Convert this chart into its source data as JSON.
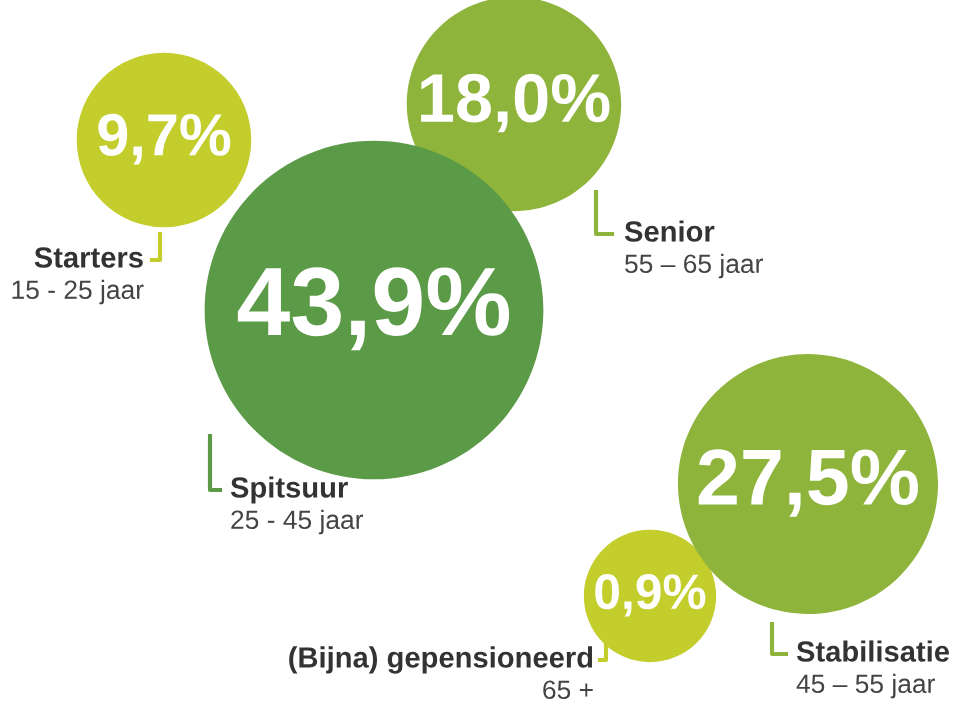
{
  "chart_data": {
    "type": "other",
    "categories": [
      "Starters",
      "Senior",
      "Spitsuur",
      "(Bijna) gepensioneerd",
      "Stabilisatie"
    ],
    "values": [
      9.7,
      18.0,
      43.9,
      0.9,
      27.5
    ],
    "value_labels": [
      "9,7%",
      "18,0%",
      "43,9%",
      "0,9%",
      "27,5%"
    ],
    "colors": [
      "#c3cd2c",
      "#8fb43c",
      "#5b9a46",
      "#c3cd2c",
      "#8fb43c"
    ],
    "annotations": [
      "15 - 25 jaar",
      "55 – 65 jaar",
      "25 - 45 jaar",
      "65 +",
      "45 – 55 jaar"
    ]
  }
}
